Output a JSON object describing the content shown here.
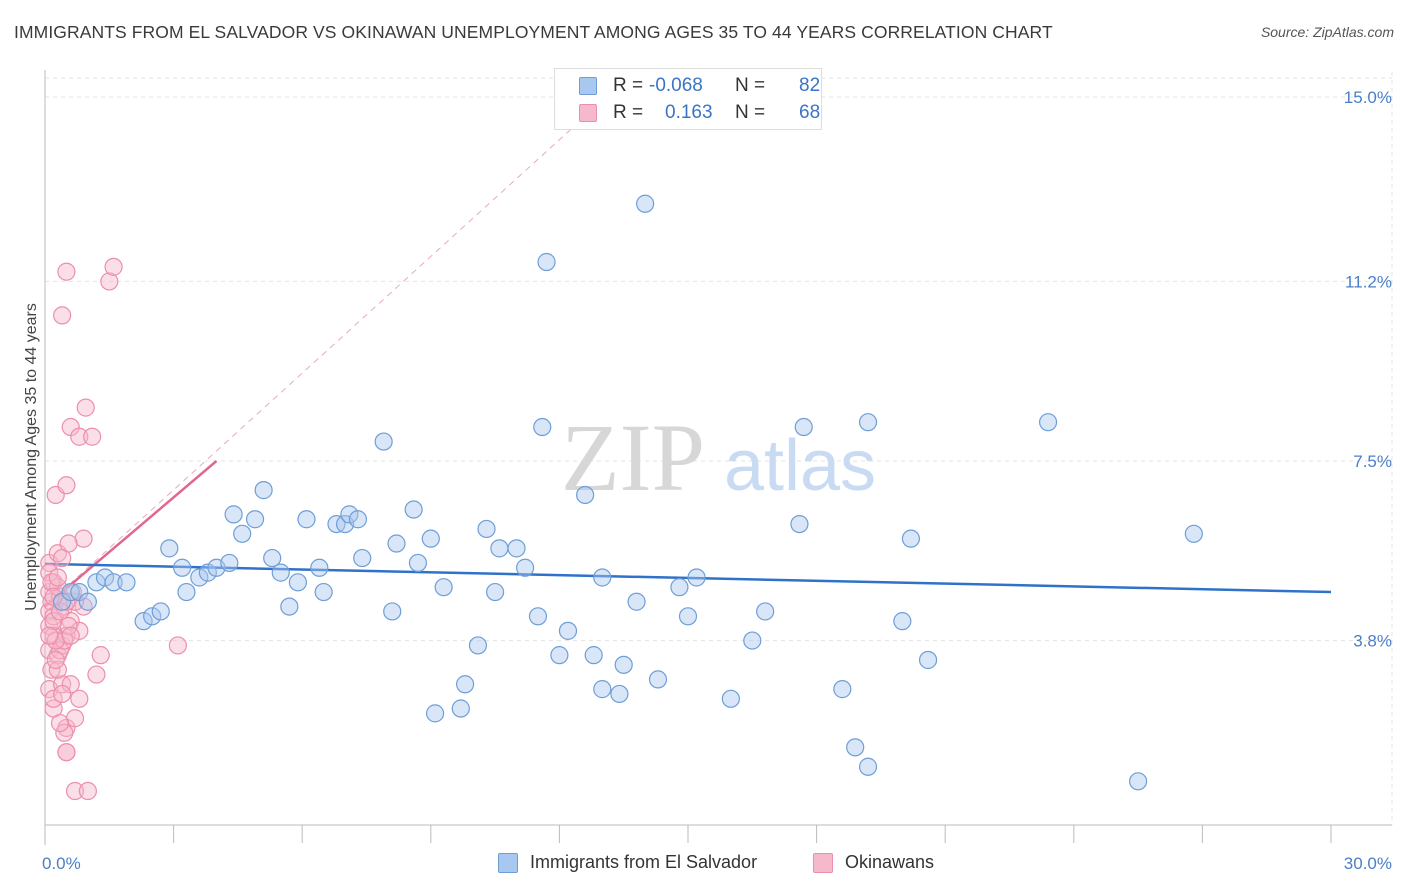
{
  "title": "IMMIGRANTS FROM EL SALVADOR VS OKINAWAN UNEMPLOYMENT AMONG AGES 35 TO 44 YEARS CORRELATION CHART",
  "source": "Source: ZipAtlas.com",
  "watermark": {
    "zip": "ZIP",
    "atlas": "atlas"
  },
  "colors": {
    "blue_fill": "#a9c8f0",
    "blue_stroke": "#6e9ed8",
    "blue_line": "#2f72c9",
    "pink_fill": "#f6b8cb",
    "pink_stroke": "#ec8fab",
    "pink_line": "#e0678f",
    "axis_label": "#4a7fc8",
    "grid": "#e3e3e3"
  },
  "correlation_box": {
    "rows": [
      {
        "series": "blue",
        "r_label": "R =",
        "r_value": "-0.068",
        "n_label": "N =",
        "n_value": "82"
      },
      {
        "series": "pink",
        "r_label": "R =",
        "r_value": "0.163",
        "n_label": "N =",
        "n_value": "68"
      }
    ]
  },
  "legend": {
    "items": [
      {
        "series": "blue",
        "label": "Immigrants from El Salvador"
      },
      {
        "series": "pink",
        "label": "Okinawans"
      }
    ]
  },
  "chart_data": {
    "type": "scatter",
    "title": "IMMIGRANTS FROM EL SALVADOR VS OKINAWAN UNEMPLOYMENT AMONG AGES 35 TO 44 YEARS CORRELATION CHART",
    "xlabel": "",
    "ylabel": "Unemployment Among Ages 35 to 44 years",
    "xlim": [
      0,
      30
    ],
    "ylim": [
      0,
      15.5
    ],
    "x_tick_labels": [
      "0.0%",
      "30.0%"
    ],
    "y_ticks": [
      3.8,
      7.5,
      11.2,
      15.0
    ],
    "y_tick_labels": [
      "3.8%",
      "7.5%",
      "11.2%",
      "15.0%"
    ],
    "grid": true,
    "legend_position": "bottom-center",
    "series": [
      {
        "name": "Immigrants from El Salvador",
        "color": "blue",
        "R": -0.068,
        "N": 82,
        "trend": {
          "x": [
            0,
            30
          ],
          "y": [
            5.38,
            4.8
          ]
        },
        "points": [
          [
            0.4,
            4.6
          ],
          [
            0.6,
            4.8
          ],
          [
            0.8,
            4.8
          ],
          [
            1.0,
            4.6
          ],
          [
            1.2,
            5.0
          ],
          [
            1.4,
            5.1
          ],
          [
            1.6,
            5.0
          ],
          [
            1.9,
            5.0
          ],
          [
            2.3,
            4.2
          ],
          [
            2.5,
            4.3
          ],
          [
            2.7,
            4.4
          ],
          [
            2.9,
            5.7
          ],
          [
            3.2,
            5.3
          ],
          [
            3.3,
            4.8
          ],
          [
            3.6,
            5.1
          ],
          [
            3.8,
            5.2
          ],
          [
            4.0,
            5.3
          ],
          [
            4.3,
            5.4
          ],
          [
            4.4,
            6.4
          ],
          [
            4.6,
            6.0
          ],
          [
            4.9,
            6.3
          ],
          [
            5.1,
            6.9
          ],
          [
            5.3,
            5.5
          ],
          [
            5.5,
            5.2
          ],
          [
            5.7,
            4.5
          ],
          [
            5.9,
            5.0
          ],
          [
            6.1,
            6.3
          ],
          [
            6.4,
            5.3
          ],
          [
            6.5,
            4.8
          ],
          [
            6.8,
            6.2
          ],
          [
            7.0,
            6.2
          ],
          [
            7.1,
            6.4
          ],
          [
            7.3,
            6.3
          ],
          [
            7.4,
            5.5
          ],
          [
            7.9,
            7.9
          ],
          [
            8.1,
            4.4
          ],
          [
            8.2,
            5.8
          ],
          [
            8.6,
            6.5
          ],
          [
            8.7,
            5.4
          ],
          [
            9.0,
            5.9
          ],
          [
            9.3,
            4.9
          ],
          [
            9.8,
            2.9
          ],
          [
            9.7,
            2.4
          ],
          [
            9.1,
            2.3
          ],
          [
            10.1,
            3.7
          ],
          [
            10.3,
            6.1
          ],
          [
            10.5,
            4.8
          ],
          [
            10.6,
            5.7
          ],
          [
            11.0,
            5.7
          ],
          [
            11.2,
            5.3
          ],
          [
            11.5,
            4.3
          ],
          [
            11.6,
            8.2
          ],
          [
            11.7,
            11.6
          ],
          [
            12.0,
            3.5
          ],
          [
            12.2,
            4.0
          ],
          [
            12.6,
            6.8
          ],
          [
            12.8,
            3.5
          ],
          [
            13.0,
            2.8
          ],
          [
            13.0,
            5.1
          ],
          [
            13.4,
            2.7
          ],
          [
            13.5,
            3.3
          ],
          [
            14.0,
            12.8
          ],
          [
            14.3,
            3.0
          ],
          [
            14.8,
            4.9
          ],
          [
            15.0,
            4.3
          ],
          [
            15.2,
            5.1
          ],
          [
            16.0,
            2.6
          ],
          [
            16.5,
            3.8
          ],
          [
            16.8,
            4.4
          ],
          [
            17.6,
            6.2
          ],
          [
            17.7,
            8.2
          ],
          [
            18.6,
            2.8
          ],
          [
            18.9,
            1.6
          ],
          [
            19.2,
            1.2
          ],
          [
            19.2,
            8.3
          ],
          [
            20.0,
            4.2
          ],
          [
            20.2,
            5.9
          ],
          [
            23.4,
            8.3
          ],
          [
            25.5,
            0.9
          ],
          [
            26.8,
            6.0
          ],
          [
            20.6,
            3.4
          ],
          [
            13.8,
            4.6
          ]
        ]
      },
      {
        "name": "Okinawans",
        "color": "pink",
        "R": 0.163,
        "N": 68,
        "trend": {
          "x": [
            0,
            4.0
          ],
          "y": [
            4.5,
            7.5
          ]
        },
        "trend_extended": {
          "x": [
            0,
            12.6
          ],
          "y": [
            4.5,
            14.6
          ]
        },
        "points": [
          [
            0.1,
            5.4
          ],
          [
            0.1,
            4.8
          ],
          [
            0.1,
            4.4
          ],
          [
            0.1,
            3.6
          ],
          [
            0.1,
            2.8
          ],
          [
            0.1,
            4.1
          ],
          [
            0.15,
            3.2
          ],
          [
            0.15,
            4.6
          ],
          [
            0.2,
            5.0
          ],
          [
            0.2,
            4.3
          ],
          [
            0.2,
            3.9
          ],
          [
            0.2,
            2.4
          ],
          [
            0.25,
            6.8
          ],
          [
            0.3,
            5.6
          ],
          [
            0.3,
            3.5
          ],
          [
            0.35,
            4.7
          ],
          [
            0.4,
            2.9
          ],
          [
            0.4,
            3.7
          ],
          [
            0.4,
            10.5
          ],
          [
            0.45,
            4.5
          ],
          [
            0.5,
            1.5
          ],
          [
            0.5,
            2.0
          ],
          [
            0.5,
            3.9
          ],
          [
            0.6,
            4.2
          ],
          [
            0.6,
            8.2
          ],
          [
            0.7,
            0.7
          ],
          [
            0.7,
            2.2
          ],
          [
            0.8,
            8.0
          ],
          [
            0.8,
            2.6
          ],
          [
            0.9,
            4.5
          ],
          [
            0.9,
            5.9
          ],
          [
            1.0,
            0.7
          ],
          [
            1.1,
            8.0
          ],
          [
            1.2,
            3.1
          ],
          [
            1.3,
            3.5
          ],
          [
            1.5,
            11.2
          ],
          [
            1.6,
            11.5
          ],
          [
            3.1,
            3.7
          ],
          [
            0.5,
            11.4
          ],
          [
            0.55,
            5.8
          ],
          [
            0.1,
            5.2
          ],
          [
            0.2,
            4.2
          ],
          [
            0.3,
            4.9
          ],
          [
            0.35,
            3.6
          ],
          [
            0.45,
            3.8
          ],
          [
            0.5,
            7.0
          ],
          [
            0.6,
            2.9
          ],
          [
            0.7,
            4.6
          ],
          [
            0.8,
            4.0
          ],
          [
            0.95,
            8.6
          ],
          [
            0.25,
            3.8
          ],
          [
            0.15,
            5.0
          ],
          [
            0.4,
            5.5
          ],
          [
            0.55,
            4.1
          ],
          [
            0.65,
            4.8
          ],
          [
            0.2,
            2.6
          ],
          [
            0.3,
            3.2
          ],
          [
            0.35,
            4.4
          ],
          [
            0.45,
            1.9
          ],
          [
            0.5,
            4.6
          ],
          [
            0.6,
            3.9
          ],
          [
            0.1,
            3.9
          ],
          [
            0.3,
            5.1
          ],
          [
            0.4,
            2.7
          ],
          [
            0.5,
            1.5
          ],
          [
            0.2,
            4.7
          ],
          [
            0.25,
            3.4
          ],
          [
            0.35,
            2.1
          ]
        ]
      }
    ]
  }
}
